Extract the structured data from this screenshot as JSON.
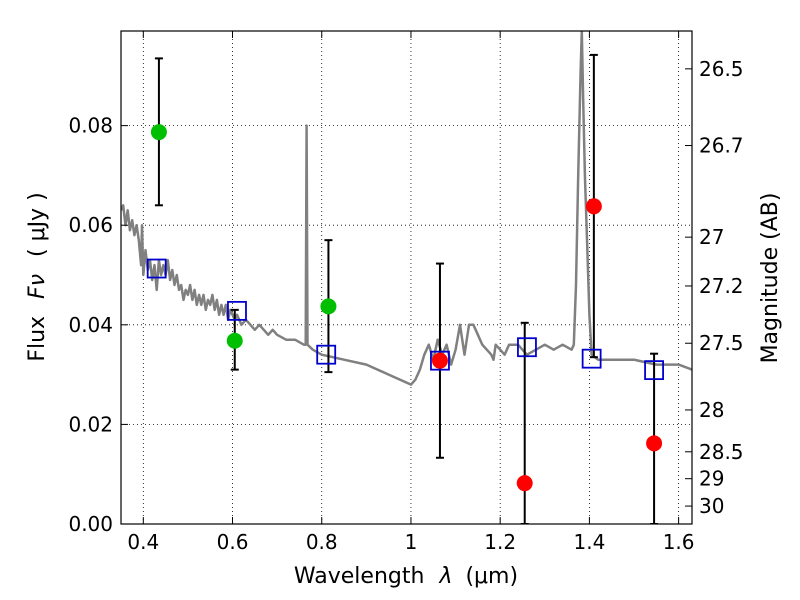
{
  "chart_data": {
    "type": "scatter",
    "title": "",
    "xlabel": "Wavelength",
    "xlabel_symbol": "λ",
    "xlabel_unit": "(μm)",
    "ylabel": "Flux",
    "ylabel_symbol": "Fν",
    "ylabel_unit": "( μJy )",
    "y2label": "Magnitude (AB)",
    "xlim": [
      0.35,
      1.63
    ],
    "ylim": [
      0.0,
      0.099
    ],
    "grid": true,
    "grid_style": "dotted",
    "x_ticks": [
      {
        "value": 0.4,
        "label": "0.4"
      },
      {
        "value": 0.6,
        "label": "0.6"
      },
      {
        "value": 0.8,
        "label": "0.8"
      },
      {
        "value": 1.0,
        "label": "1"
      },
      {
        "value": 1.2,
        "label": "1.2"
      },
      {
        "value": 1.4,
        "label": "1.4"
      },
      {
        "value": 1.6,
        "label": "1.6"
      }
    ],
    "y_ticks": [
      {
        "value": 0.0,
        "label": "0.00"
      },
      {
        "value": 0.02,
        "label": "0.02"
      },
      {
        "value": 0.04,
        "label": "0.04"
      },
      {
        "value": 0.06,
        "label": "0.06"
      },
      {
        "value": 0.08,
        "label": "0.08"
      }
    ],
    "y2_ticks": [
      {
        "flux": 0.0914,
        "label": "26.5"
      },
      {
        "flux": 0.076,
        "label": "26.7"
      },
      {
        "flux": 0.0576,
        "label": "27"
      },
      {
        "flux": 0.0478,
        "label": "27.2"
      },
      {
        "flux": 0.0363,
        "label": "27.5"
      },
      {
        "flux": 0.0229,
        "label": "28"
      },
      {
        "flux": 0.0145,
        "label": "28.5"
      },
      {
        "flux": 0.0091,
        "label": "29"
      },
      {
        "flux": 0.0036,
        "label": "30"
      }
    ],
    "series": [
      {
        "kind": "line",
        "color": "#808080",
        "points": [
          [
            0.35,
            0.063
          ],
          [
            0.355,
            0.064
          ],
          [
            0.36,
            0.06
          ],
          [
            0.365,
            0.063
          ],
          [
            0.37,
            0.059
          ],
          [
            0.375,
            0.061
          ],
          [
            0.38,
            0.058
          ],
          [
            0.385,
            0.06
          ],
          [
            0.39,
            0.057
          ],
          [
            0.395,
            0.052
          ],
          [
            0.397,
            0.06
          ],
          [
            0.4,
            0.05
          ],
          [
            0.405,
            0.055
          ],
          [
            0.41,
            0.051
          ],
          [
            0.415,
            0.053
          ],
          [
            0.42,
            0.049
          ],
          [
            0.425,
            0.052
          ],
          [
            0.43,
            0.047
          ],
          [
            0.435,
            0.053
          ],
          [
            0.44,
            0.05
          ],
          [
            0.445,
            0.052
          ],
          [
            0.45,
            0.05
          ],
          [
            0.455,
            0.053
          ],
          [
            0.46,
            0.049
          ],
          [
            0.465,
            0.051
          ],
          [
            0.47,
            0.048
          ],
          [
            0.475,
            0.05
          ],
          [
            0.48,
            0.047
          ],
          [
            0.485,
            0.048
          ],
          [
            0.49,
            0.045
          ],
          [
            0.495,
            0.047
          ],
          [
            0.5,
            0.046
          ],
          [
            0.505,
            0.048
          ],
          [
            0.51,
            0.045
          ],
          [
            0.515,
            0.047
          ],
          [
            0.52,
            0.044
          ],
          [
            0.525,
            0.046
          ],
          [
            0.53,
            0.044
          ],
          [
            0.535,
            0.046
          ],
          [
            0.54,
            0.043
          ],
          [
            0.545,
            0.045
          ],
          [
            0.55,
            0.044
          ],
          [
            0.555,
            0.046
          ],
          [
            0.56,
            0.043
          ],
          [
            0.565,
            0.045
          ],
          [
            0.57,
            0.042
          ],
          [
            0.575,
            0.044
          ],
          [
            0.58,
            0.042
          ],
          [
            0.585,
            0.044
          ],
          [
            0.59,
            0.041
          ],
          [
            0.595,
            0.043
          ],
          [
            0.6,
            0.042
          ],
          [
            0.605,
            0.041
          ],
          [
            0.61,
            0.042
          ],
          [
            0.62,
            0.04
          ],
          [
            0.63,
            0.041
          ],
          [
            0.64,
            0.04
          ],
          [
            0.65,
            0.039
          ],
          [
            0.66,
            0.04
          ],
          [
            0.67,
            0.039
          ],
          [
            0.68,
            0.038
          ],
          [
            0.69,
            0.039
          ],
          [
            0.7,
            0.038
          ],
          [
            0.72,
            0.037
          ],
          [
            0.74,
            0.037
          ],
          [
            0.76,
            0.036
          ],
          [
            0.764,
            0.036
          ],
          [
            0.766,
            0.08
          ],
          [
            0.768,
            0.036
          ],
          [
            0.78,
            0.035
          ],
          [
            0.8,
            0.034
          ],
          [
            0.85,
            0.033
          ],
          [
            0.9,
            0.032
          ],
          [
            0.95,
            0.03
          ],
          [
            1.0,
            0.028
          ],
          [
            1.01,
            0.029
          ],
          [
            1.02,
            0.031
          ],
          [
            1.03,
            0.034
          ],
          [
            1.04,
            0.036
          ],
          [
            1.05,
            0.033
          ],
          [
            1.06,
            0.037
          ],
          [
            1.07,
            0.034
          ],
          [
            1.08,
            0.036
          ],
          [
            1.09,
            0.032
          ],
          [
            1.1,
            0.035
          ],
          [
            1.11,
            0.04
          ],
          [
            1.12,
            0.034
          ],
          [
            1.13,
            0.04
          ],
          [
            1.14,
            0.04
          ],
          [
            1.15,
            0.038
          ],
          [
            1.16,
            0.036
          ],
          [
            1.17,
            0.035
          ],
          [
            1.18,
            0.034
          ],
          [
            1.185,
            0.033
          ],
          [
            1.19,
            0.036
          ],
          [
            1.2,
            0.035
          ],
          [
            1.21,
            0.034
          ],
          [
            1.22,
            0.036
          ],
          [
            1.24,
            0.036
          ],
          [
            1.26,
            0.034
          ],
          [
            1.28,
            0.035
          ],
          [
            1.3,
            0.036
          ],
          [
            1.32,
            0.035
          ],
          [
            1.34,
            0.036
          ],
          [
            1.36,
            0.035
          ],
          [
            1.365,
            0.036
          ],
          [
            1.37,
            0.048
          ],
          [
            1.375,
            0.07
          ],
          [
            1.38,
            0.09
          ],
          [
            1.383,
            0.099
          ],
          [
            1.386,
            0.085
          ],
          [
            1.39,
            0.07
          ],
          [
            1.395,
            0.056
          ],
          [
            1.4,
            0.042
          ],
          [
            1.405,
            0.034
          ],
          [
            1.42,
            0.033
          ],
          [
            1.45,
            0.033
          ],
          [
            1.5,
            0.033
          ],
          [
            1.55,
            0.032
          ],
          [
            1.6,
            0.032
          ],
          [
            1.63,
            0.031
          ]
        ]
      },
      {
        "kind": "points",
        "marker": "circle",
        "color": "#00bf00",
        "points": [
          {
            "x": 0.435,
            "y": 0.0787,
            "err_lo": 0.064,
            "err_hi": 0.0935
          },
          {
            "x": 0.605,
            "y": 0.0368,
            "err_lo": 0.031,
            "err_hi": 0.043
          },
          {
            "x": 0.815,
            "y": 0.0437,
            "err_lo": 0.0305,
            "err_hi": 0.057
          }
        ]
      },
      {
        "kind": "points",
        "marker": "circle",
        "color": "#ff0000",
        "points": [
          {
            "x": 1.065,
            "y": 0.0328,
            "err_lo": 0.0133,
            "err_hi": 0.0523
          },
          {
            "x": 1.255,
            "y": 0.0082,
            "err_lo": 0.0,
            "err_hi": 0.0404
          },
          {
            "x": 1.41,
            "y": 0.0638,
            "err_lo": 0.0335,
            "err_hi": 0.0942
          },
          {
            "x": 1.545,
            "y": 0.0162,
            "err_lo": 0.0,
            "err_hi": 0.0342
          }
        ]
      },
      {
        "kind": "points",
        "marker": "square-open",
        "color": "#0000cc",
        "points": [
          {
            "x": 0.43,
            "y": 0.0513
          },
          {
            "x": 0.61,
            "y": 0.0428
          },
          {
            "x": 0.81,
            "y": 0.034
          },
          {
            "x": 1.065,
            "y": 0.0328
          },
          {
            "x": 1.26,
            "y": 0.0355
          },
          {
            "x": 1.405,
            "y": 0.0332
          },
          {
            "x": 1.545,
            "y": 0.0309
          }
        ]
      }
    ]
  }
}
